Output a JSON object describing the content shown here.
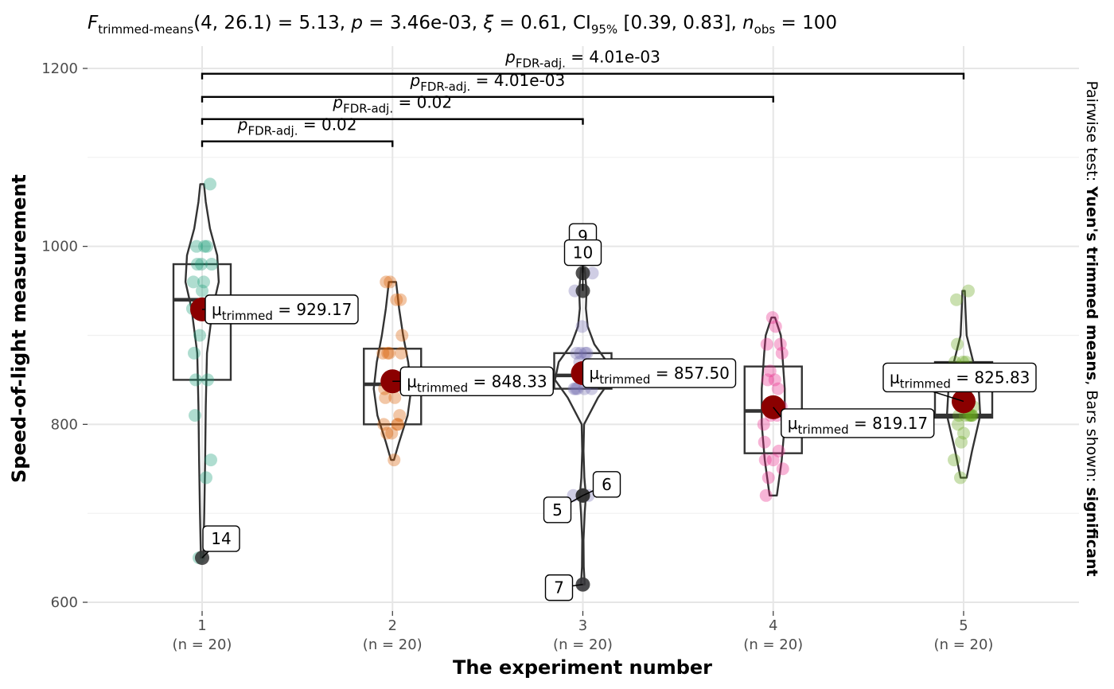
{
  "chart_data": {
    "type": "violin-box",
    "subtitle": {
      "stat": "F",
      "stat_sub": "trimmed-means",
      "args": "(4, 26.1) = 5.13, ",
      "p": "p",
      "p_val": " = 3.46e-03, ",
      "xi": "ξ",
      "xi_val": " = 0.61, ",
      "ci": "CI",
      "ci_sub": "95%",
      "ci_val": " [0.39, 0.83], ",
      "n": "n",
      "n_sub": "obs",
      "n_val": " = 100"
    },
    "xlabel": "The experiment number",
    "ylabel": "Speed-of-light measurement",
    "ylim": [
      595,
      1210
    ],
    "yticks": [
      600,
      800,
      1000,
      1200
    ],
    "ygrid_minor": [
      700,
      900,
      1100
    ],
    "categories": [
      "1",
      "2",
      "3",
      "4",
      "5"
    ],
    "n_labels": [
      "(n = 20)",
      "(n = 20)",
      "(n = 20)",
      "(n = 20)",
      "(n = 20)"
    ],
    "colors": [
      "#1b9e77",
      "#d95f02",
      "#7570b3",
      "#e7298a",
      "#66a61e"
    ],
    "mean_color": "#8b0000",
    "groups": [
      {
        "name": "1",
        "q1": 850,
        "median": 940,
        "q3": 980,
        "trimmed_mean": 929.17,
        "points": [
          850,
          740,
          900,
          1070,
          930,
          850,
          950,
          980,
          980,
          880,
          1000,
          980,
          930,
          650,
          760,
          810,
          1000,
          1000,
          960,
          960
        ],
        "violin": [
          [
            650,
            0.04
          ],
          [
            700,
            0.07
          ],
          [
            760,
            0.1
          ],
          [
            820,
            0.12
          ],
          [
            880,
            0.16
          ],
          [
            930,
            0.35
          ],
          [
            960,
            0.55
          ],
          [
            990,
            0.5
          ],
          [
            1020,
            0.26
          ],
          [
            1050,
            0.12
          ],
          [
            1070,
            0.06
          ]
        ]
      },
      {
        "name": "2",
        "q1": 800,
        "median": 845,
        "q3": 885,
        "trimmed_mean": 848.33,
        "points": [
          960,
          940,
          960,
          940,
          880,
          800,
          850,
          880,
          900,
          840,
          830,
          790,
          810,
          880,
          880,
          830,
          800,
          790,
          760,
          800
        ],
        "violin": [
          [
            760,
            0.05
          ],
          [
            780,
            0.22
          ],
          [
            810,
            0.5
          ],
          [
            840,
            0.62
          ],
          [
            870,
            0.52
          ],
          [
            900,
            0.35
          ],
          [
            930,
            0.22
          ],
          [
            960,
            0.12
          ]
        ]
      },
      {
        "name": "3",
        "q1": 840,
        "median": 855,
        "q3": 880,
        "trimmed_mean": 857.5,
        "points": [
          880,
          880,
          880,
          860,
          720,
          720,
          620,
          860,
          970,
          950,
          880,
          910,
          850,
          870,
          840,
          840,
          850,
          840,
          840,
          840
        ],
        "violin": [
          [
            620,
            0.06
          ],
          [
            640,
            0.03
          ],
          [
            670,
            0.02
          ],
          [
            700,
            0.06
          ],
          [
            720,
            0.1
          ],
          [
            740,
            0.05
          ],
          [
            770,
            0.02
          ],
          [
            800,
            0.04
          ],
          [
            830,
            0.5
          ],
          [
            850,
            0.92
          ],
          [
            870,
            0.8
          ],
          [
            890,
            0.38
          ],
          [
            910,
            0.16
          ],
          [
            930,
            0.1
          ],
          [
            950,
            0.12
          ],
          [
            975,
            0.06
          ]
        ]
      },
      {
        "name": "4",
        "q1": 767.5,
        "median": 815,
        "q3": 865,
        "trimmed_mean": 819.17,
        "points": [
          890,
          810,
          810,
          820,
          800,
          770,
          760,
          740,
          750,
          760,
          910,
          920,
          890,
          860,
          880,
          720,
          840,
          850,
          850,
          780
        ],
        "violin": [
          [
            720,
            0.12
          ],
          [
            760,
            0.28
          ],
          [
            800,
            0.38
          ],
          [
            840,
            0.38
          ],
          [
            880,
            0.3
          ],
          [
            900,
            0.25
          ],
          [
            920,
            0.06
          ]
        ]
      },
      {
        "name": "5",
        "q1": 807.5,
        "median": 810,
        "q3": 870,
        "trimmed_mean": 825.83,
        "points": [
          890,
          840,
          780,
          810,
          760,
          810,
          790,
          810,
          820,
          850,
          870,
          870,
          810,
          740,
          810,
          940,
          950,
          800,
          810,
          870
        ],
        "violin": [
          [
            740,
            0.1
          ],
          [
            770,
            0.28
          ],
          [
            810,
            0.55
          ],
          [
            840,
            0.5
          ],
          [
            870,
            0.32
          ],
          [
            900,
            0.1
          ],
          [
            930,
            0.06
          ],
          [
            950,
            0.04
          ]
        ]
      }
    ],
    "mean_labels": [
      "929.17",
      "848.33",
      "857.50",
      "819.17",
      "825.83"
    ],
    "mean_label_prefix": "μ",
    "mean_label_sub": "trimmed",
    "mean_label_eq": " = ",
    "outliers": [
      {
        "group": 1,
        "value": 650,
        "label": "14"
      },
      {
        "group": 3,
        "value": 970,
        "label": "9"
      },
      {
        "group": 3,
        "value": 950,
        "label": "10"
      },
      {
        "group": 3,
        "value": 720,
        "label": "5"
      },
      {
        "group": 3,
        "value": 720,
        "label": "6"
      },
      {
        "group": 3,
        "value": 620,
        "label": "7"
      }
    ],
    "pairwise": [
      {
        "from": 1,
        "to": 2,
        "y": 1118,
        "label": "0.02"
      },
      {
        "from": 1,
        "to": 3,
        "y": 1143,
        "label": "0.02"
      },
      {
        "from": 1,
        "to": 4,
        "y": 1168,
        "label": "4.01e-03"
      },
      {
        "from": 1,
        "to": 5,
        "y": 1194,
        "label": "4.01e-03"
      }
    ],
    "pairwise_prefix": "p",
    "pairwise_sub": "FDR-adj.",
    "pairwise_eq": " = ",
    "caption": {
      "part1": "Pairwise test: ",
      "part2": "Yuen's trimmed means",
      "part3": ", Bars shown: ",
      "part4": "significant"
    }
  }
}
